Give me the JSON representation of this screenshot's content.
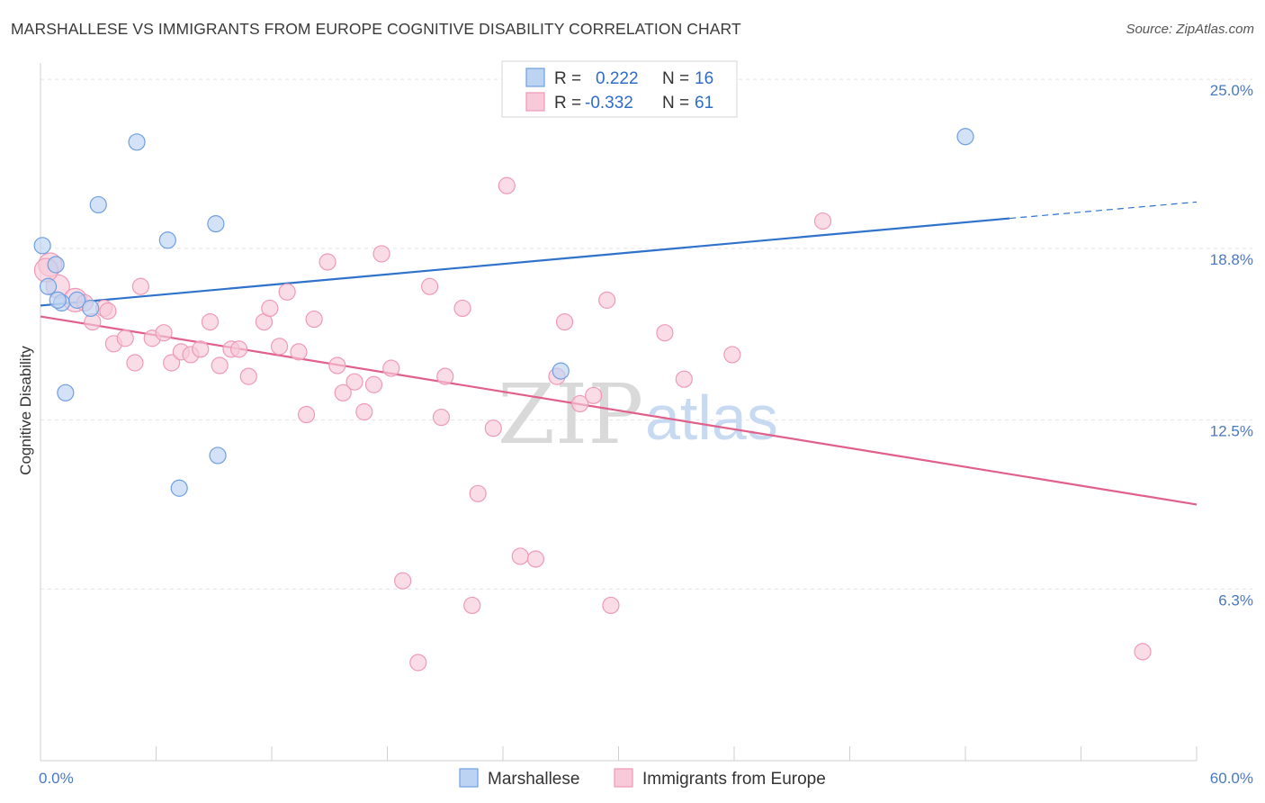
{
  "title": "MARSHALLESE VS IMMIGRANTS FROM EUROPE COGNITIVE DISABILITY CORRELATION CHART",
  "source": "Source: ZipAtlas.com",
  "watermark": {
    "zip": "ZIP",
    "atlas": "atlas"
  },
  "chart_data": {
    "type": "scatter",
    "title": "MARSHALLESE VS IMMIGRANTS FROM EUROPE COGNITIVE DISABILITY CORRELATION CHART",
    "xlabel": "",
    "ylabel": "Cognitive Disability",
    "xlim": [
      0,
      60
    ],
    "ylim": [
      0,
      25.6
    ],
    "x_tick_labels": [
      "0.0%",
      "60.0%"
    ],
    "y_ticks": [
      6.3,
      12.5,
      18.8,
      25.0
    ],
    "y_tick_labels": [
      "6.3%",
      "12.5%",
      "18.8%",
      "25.0%"
    ],
    "grid": true,
    "legend": {
      "position": "top-center",
      "entries": [
        {
          "r_label": "R =",
          "r_value": "0.222",
          "n_label": "N =",
          "n_value": "16"
        },
        {
          "r_label": "R =",
          "r_value": "-0.332",
          "n_label": "N =",
          "n_value": "61"
        }
      ]
    },
    "series": [
      {
        "name": "Marshallese",
        "color": "#6f9fe0",
        "fill": "#bcd3f2",
        "line_color": "#2f72cc",
        "trend": {
          "x": [
            0,
            50.3
          ],
          "y": [
            16.7,
            19.9
          ],
          "dashed_extension_to": [
            60,
            20.5
          ]
        },
        "points": [
          {
            "x": 0.1,
            "y": 18.9
          },
          {
            "x": 0.4,
            "y": 17.4
          },
          {
            "x": 0.8,
            "y": 18.2
          },
          {
            "x": 1.1,
            "y": 16.8
          },
          {
            "x": 0.9,
            "y": 16.9
          },
          {
            "x": 1.9,
            "y": 16.9
          },
          {
            "x": 2.6,
            "y": 16.6
          },
          {
            "x": 1.3,
            "y": 13.5
          },
          {
            "x": 3.0,
            "y": 20.4
          },
          {
            "x": 5.0,
            "y": 22.7
          },
          {
            "x": 6.6,
            "y": 19.1
          },
          {
            "x": 9.1,
            "y": 19.7
          },
          {
            "x": 9.2,
            "y": 11.2
          },
          {
            "x": 7.2,
            "y": 10.0
          },
          {
            "x": 27.0,
            "y": 14.3
          },
          {
            "x": 48.0,
            "y": 22.9
          }
        ]
      },
      {
        "name": "Immigrants from Europe",
        "color": "#ee9ab6",
        "fill": "#f8cad9",
        "line_color": "#e0608a",
        "trend": {
          "x": [
            0,
            60
          ],
          "y": [
            16.3,
            9.4
          ]
        },
        "points": [
          {
            "x": 0.5,
            "y": 18.2
          },
          {
            "x": 0.9,
            "y": 17.4
          },
          {
            "x": 1.8,
            "y": 16.9
          },
          {
            "x": 2.3,
            "y": 16.8
          },
          {
            "x": 3.3,
            "y": 16.6
          },
          {
            "x": 2.7,
            "y": 16.1
          },
          {
            "x": 3.8,
            "y": 15.3
          },
          {
            "x": 4.4,
            "y": 15.5
          },
          {
            "x": 4.9,
            "y": 14.6
          },
          {
            "x": 5.2,
            "y": 17.4
          },
          {
            "x": 5.8,
            "y": 15.5
          },
          {
            "x": 6.4,
            "y": 15.7
          },
          {
            "x": 6.8,
            "y": 14.6
          },
          {
            "x": 7.3,
            "y": 15.0
          },
          {
            "x": 7.8,
            "y": 14.9
          },
          {
            "x": 8.3,
            "y": 15.1
          },
          {
            "x": 8.8,
            "y": 16.1
          },
          {
            "x": 9.3,
            "y": 14.5
          },
          {
            "x": 9.9,
            "y": 15.1
          },
          {
            "x": 10.3,
            "y": 15.1
          },
          {
            "x": 10.8,
            "y": 14.1
          },
          {
            "x": 11.6,
            "y": 16.1
          },
          {
            "x": 11.9,
            "y": 16.6
          },
          {
            "x": 12.4,
            "y": 15.2
          },
          {
            "x": 12.8,
            "y": 17.2
          },
          {
            "x": 13.4,
            "y": 15.0
          },
          {
            "x": 13.8,
            "y": 12.7
          },
          {
            "x": 14.2,
            "y": 16.2
          },
          {
            "x": 14.9,
            "y": 18.3
          },
          {
            "x": 15.4,
            "y": 14.5
          },
          {
            "x": 15.7,
            "y": 13.5
          },
          {
            "x": 16.3,
            "y": 13.9
          },
          {
            "x": 16.8,
            "y": 12.8
          },
          {
            "x": 17.3,
            "y": 13.8
          },
          {
            "x": 17.7,
            "y": 18.6
          },
          {
            "x": 18.2,
            "y": 14.4
          },
          {
            "x": 18.8,
            "y": 6.6
          },
          {
            "x": 19.6,
            "y": 3.6
          },
          {
            "x": 20.2,
            "y": 17.4
          },
          {
            "x": 20.8,
            "y": 12.6
          },
          {
            "x": 21.0,
            "y": 14.1
          },
          {
            "x": 21.9,
            "y": 16.6
          },
          {
            "x": 22.4,
            "y": 5.7
          },
          {
            "x": 22.7,
            "y": 9.8
          },
          {
            "x": 23.5,
            "y": 12.2
          },
          {
            "x": 24.2,
            "y": 21.1
          },
          {
            "x": 24.9,
            "y": 7.5
          },
          {
            "x": 25.7,
            "y": 7.4
          },
          {
            "x": 26.8,
            "y": 14.1
          },
          {
            "x": 27.2,
            "y": 16.1
          },
          {
            "x": 28.0,
            "y": 13.1
          },
          {
            "x": 28.7,
            "y": 13.4
          },
          {
            "x": 29.4,
            "y": 16.9
          },
          {
            "x": 29.6,
            "y": 5.7
          },
          {
            "x": 32.4,
            "y": 15.7
          },
          {
            "x": 33.4,
            "y": 14.0
          },
          {
            "x": 35.9,
            "y": 14.9
          },
          {
            "x": 40.6,
            "y": 19.8
          },
          {
            "x": 57.2,
            "y": 4.0
          },
          {
            "x": 0.3,
            "y": 18.0
          },
          {
            "x": 3.5,
            "y": 16.5
          }
        ]
      }
    ]
  }
}
